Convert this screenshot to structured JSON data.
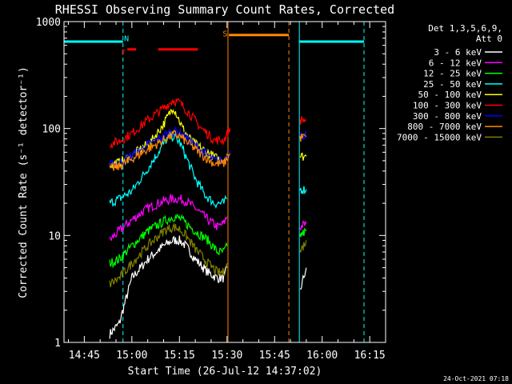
{
  "chart_data": {
    "type": "line",
    "title": "RHESSI Observing Summary Count Rates, Corrected",
    "xlabel": "Start Time (26-Jul-12 14:37:02)",
    "ylabel": "Corrected Count Rate (s⁻¹ detector⁻¹)",
    "y_scale": "log",
    "ylim": [
      1,
      1000
    ],
    "xlim_minutes_after_1430": [
      8.6,
      110
    ],
    "x_ticks": [
      {
        "label": "14:45",
        "minutes": 15
      },
      {
        "label": "15:00",
        "minutes": 30
      },
      {
        "label": "15:15",
        "minutes": 45
      },
      {
        "label": "15:30",
        "minutes": 60
      },
      {
        "label": "15:45",
        "minutes": 75
      },
      {
        "label": "16:00",
        "minutes": 90
      },
      {
        "label": "16:15",
        "minutes": 105
      }
    ],
    "y_ticks": [
      "1",
      "10",
      "100",
      "1000"
    ],
    "legend_header": [
      "Det 1,3,5,6,9,",
      "Att 0"
    ],
    "legend_placement": "right",
    "series": [
      {
        "name": "3 - 6 keV",
        "color": "#ffffff",
        "segments": [
          [
            [
              23,
              1.2
            ],
            [
              26,
              1.5
            ],
            [
              30,
              4
            ],
            [
              35,
              6
            ],
            [
              40,
              8
            ],
            [
              43,
              9
            ],
            [
              45,
              9
            ],
            [
              47,
              8
            ],
            [
              50,
              6
            ],
            [
              54,
              4.5
            ],
            [
              57,
              4
            ],
            [
              59,
              4
            ],
            [
              60,
              5
            ]
          ],
          [
            [
              83,
              3
            ],
            [
              85,
              5
            ]
          ]
        ]
      },
      {
        "name": "6 - 12 keV",
        "color": "#ff00ff",
        "segments": [
          [
            [
              23,
              9
            ],
            [
              26,
              11
            ],
            [
              30,
              14
            ],
            [
              35,
              18
            ],
            [
              40,
              21
            ],
            [
              43,
              22
            ],
            [
              45,
              22
            ],
            [
              47,
              21
            ],
            [
              50,
              18
            ],
            [
              54,
              14
            ],
            [
              57,
              12
            ],
            [
              59,
              13
            ],
            [
              60,
              15
            ]
          ],
          [
            [
              83,
              12
            ],
            [
              85,
              13
            ]
          ]
        ]
      },
      {
        "name": "12 - 25 keV",
        "color": "#00ff00",
        "segments": [
          [
            [
              23,
              5.5
            ],
            [
              26,
              6
            ],
            [
              30,
              8
            ],
            [
              35,
              11
            ],
            [
              40,
              13.5
            ],
            [
              43,
              15
            ],
            [
              45,
              14.5
            ],
            [
              47,
              13
            ],
            [
              50,
              11
            ],
            [
              54,
              9
            ],
            [
              57,
              7
            ],
            [
              59,
              7
            ],
            [
              60,
              8
            ]
          ],
          [
            [
              83,
              10
            ],
            [
              85,
              11
            ]
          ]
        ]
      },
      {
        "name": "25 - 50 keV",
        "color": "#00ffff",
        "segments": [
          [
            [
              23,
              20
            ],
            [
              26,
              22
            ],
            [
              30,
              26
            ],
            [
              34,
              38
            ],
            [
              38,
              58
            ],
            [
              41,
              80
            ],
            [
              43,
              85
            ],
            [
              45,
              75
            ],
            [
              47,
              55
            ],
            [
              50,
              34
            ],
            [
              53,
              24
            ],
            [
              56,
              20
            ],
            [
              59,
              20
            ],
            [
              60,
              22
            ]
          ],
          [
            [
              83,
              27
            ],
            [
              85,
              27
            ]
          ]
        ]
      },
      {
        "name": "50 - 100 keV",
        "color": "#ffff00",
        "segments": [
          [
            [
              23,
              46
            ],
            [
              26,
              48
            ],
            [
              30,
              56
            ],
            [
              36,
              75
            ],
            [
              40,
              110
            ],
            [
              42,
              140
            ],
            [
              43,
              160
            ],
            [
              44,
              140
            ],
            [
              46,
              100
            ],
            [
              49,
              75
            ],
            [
              53,
              62
            ],
            [
              57,
              52
            ],
            [
              59,
              52
            ],
            [
              60,
              58
            ]
          ],
          [
            [
              83,
              55
            ],
            [
              85,
              55
            ]
          ]
        ]
      },
      {
        "name": "100 - 300 keV",
        "color": "#ff0000",
        "segments": [
          [
            [
              23,
              72
            ],
            [
              26,
              76
            ],
            [
              30,
              90
            ],
            [
              35,
              120
            ],
            [
              40,
              155
            ],
            [
              43,
              185
            ],
            [
              45,
              175
            ],
            [
              48,
              140
            ],
            [
              52,
              100
            ],
            [
              56,
              78
            ],
            [
              59,
              78
            ],
            [
              61,
              100
            ]
          ],
          [
            [
              83,
              120
            ],
            [
              85,
              120
            ]
          ]
        ]
      },
      {
        "name": "300 - 800 keV",
        "color": "#0000ff",
        "segments": [
          [
            [
              23,
              45
            ],
            [
              26,
              48
            ],
            [
              30,
              56
            ],
            [
              35,
              70
            ],
            [
              40,
              85
            ],
            [
              43,
              95
            ],
            [
              45,
              92
            ],
            [
              48,
              78
            ],
            [
              52,
              62
            ],
            [
              56,
              50
            ],
            [
              59,
              50
            ],
            [
              61,
              62
            ]
          ],
          [
            [
              83,
              85
            ],
            [
              85,
              88
            ]
          ]
        ]
      },
      {
        "name": "800 - 7000 keV",
        "color": "#ff8800",
        "segments": [
          [
            [
              23,
              42
            ],
            [
              26,
              44
            ],
            [
              30,
              52
            ],
            [
              35,
              64
            ],
            [
              40,
              78
            ],
            [
              43,
              88
            ],
            [
              45,
              85
            ],
            [
              48,
              72
            ],
            [
              52,
              57
            ],
            [
              56,
              47
            ],
            [
              59,
              47
            ],
            [
              61,
              58
            ]
          ],
          [
            [
              83,
              82
            ],
            [
              85,
              84
            ]
          ]
        ]
      },
      {
        "name": "7000 - 15000 keV",
        "color": "#808000",
        "segments": [
          [
            [
              23,
              3.5
            ],
            [
              26,
              4
            ],
            [
              30,
              5.5
            ],
            [
              35,
              8
            ],
            [
              40,
              11
            ],
            [
              43,
              12
            ],
            [
              45,
              11.5
            ],
            [
              47,
              10
            ],
            [
              50,
              7.5
            ],
            [
              54,
              5.5
            ],
            [
              57,
              4.5
            ],
            [
              59,
              4.5
            ],
            [
              60,
              5.5
            ]
          ],
          [
            [
              83,
              7
            ],
            [
              85,
              9
            ]
          ]
        ]
      }
    ],
    "flag_bars": [
      {
        "label": "",
        "color": "#00ffff",
        "y": 650,
        "x0": 8.6,
        "x1": 27.2
      },
      {
        "label": "",
        "color": "#00ffff",
        "y": 650,
        "x0": 82.8,
        "x1": 103.2
      },
      {
        "label": "F",
        "color": "#ff0000",
        "y": 550,
        "x0": 28.6,
        "x1": 31.3
      },
      {
        "label": "",
        "color": "#ff0000",
        "y": 550,
        "x0": 38.3,
        "x1": 50.8
      },
      {
        "label": "S",
        "color": "#ff8800",
        "y": 750,
        "x0": 60.6,
        "x1": 79.5
      }
    ],
    "flag_labels": [
      {
        "text": "N",
        "color": "#00ffff",
        "minutes": 28.3,
        "y": 700
      },
      {
        "text": "F",
        "color": "#ff0000",
        "minutes": 27.4,
        "y": 520
      },
      {
        "text": "S",
        "color": "#ff8800",
        "minutes": 59.4,
        "y": 780
      }
    ],
    "vertical_markers": [
      {
        "minutes": 8.6,
        "color": "#00ffff",
        "style": "solid"
      },
      {
        "minutes": 27.2,
        "color": "#00ffff",
        "style": "dashed"
      },
      {
        "minutes": 60.3,
        "color": "#ff8800",
        "style": "solid"
      },
      {
        "minutes": 79.5,
        "color": "#ff8800",
        "style": "dashed"
      },
      {
        "minutes": 82.8,
        "color": "#00ffff",
        "style": "solid"
      },
      {
        "minutes": 103.2,
        "color": "#00ffff",
        "style": "dashed"
      }
    ],
    "footer_date": "24-Oct-2021 07:18"
  }
}
